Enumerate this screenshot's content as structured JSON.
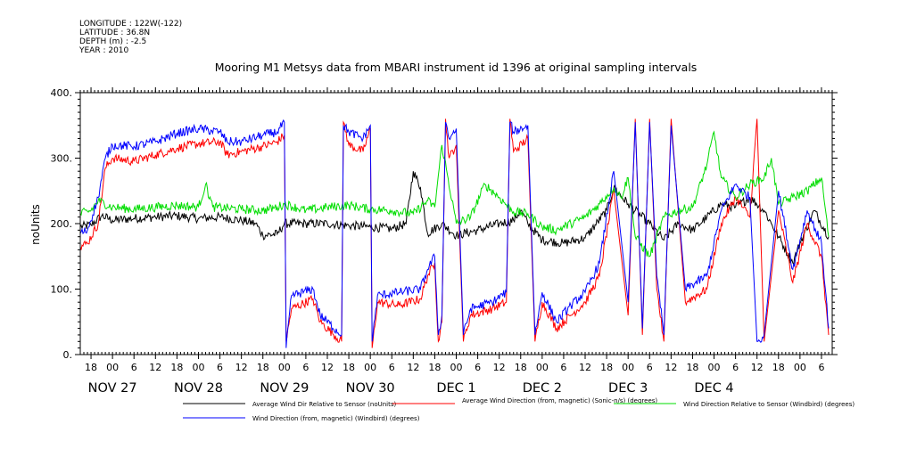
{
  "metadata": {
    "longitude": "LONGITUDE : 122W(-122)",
    "latitude": "LATITUDE : 36.8N",
    "depth": "DEPTH (m) : -2.5",
    "year": "YEAR : 2010"
  },
  "chart_data": {
    "type": "line",
    "title": "Mooring M1 Metsys data from MBARI instrument id 1396 at original sampling intervals",
    "ylabel": "noUnits",
    "xlabel": "",
    "ylim": [
      0,
      400
    ],
    "yticks": [
      "0.",
      "100.",
      "200.",
      "300.",
      "400."
    ],
    "ytick_values": [
      0,
      100,
      200,
      300,
      400
    ],
    "xlim_hours": [
      -9,
      201
    ],
    "hour_ticks": [
      "18",
      "00",
      "06",
      "12",
      "18",
      "00",
      "06",
      "12",
      "18",
      "00",
      "06",
      "12",
      "18",
      "00",
      "06",
      "12",
      "18",
      "00",
      "06",
      "12",
      "18",
      "00",
      "06",
      "12",
      "18",
      "00",
      "06",
      "12"
    ],
    "hour_tick_offsets": [
      -6,
      0,
      6,
      12,
      18,
      24,
      30,
      36,
      42,
      48,
      54,
      60,
      66,
      72,
      78,
      84,
      90,
      96,
      102,
      108,
      114,
      120,
      126,
      132,
      138,
      144,
      150,
      156,
      162,
      168,
      174,
      180,
      186,
      192,
      198
    ],
    "day_labels": [
      "NOV 27",
      "NOV 28",
      "NOV 29",
      "NOV 30",
      "DEC  1",
      "DEC  2",
      "DEC  3",
      "DEC  4"
    ],
    "day_label_hours": [
      0,
      24,
      48,
      72,
      96,
      120,
      144,
      168
    ],
    "grid": false,
    "legend_position": "bottom",
    "series": [
      {
        "name": "Average Wind Dir Relative to Sensor (noUnits)",
        "color": "#000000",
        "points": [
          [
            -9,
            195
          ],
          [
            -6,
            198
          ],
          [
            -3,
            212
          ],
          [
            0,
            205
          ],
          [
            6,
            208
          ],
          [
            12,
            210
          ],
          [
            18,
            212
          ],
          [
            24,
            208
          ],
          [
            30,
            210
          ],
          [
            36,
            205
          ],
          [
            40,
            200
          ],
          [
            42,
            182
          ],
          [
            46,
            184
          ],
          [
            48,
            200
          ],
          [
            54,
            200
          ],
          [
            60,
            200
          ],
          [
            66,
            197
          ],
          [
            72,
            195
          ],
          [
            78,
            192
          ],
          [
            82,
            200
          ],
          [
            84,
            280
          ],
          [
            86,
            255
          ],
          [
            88,
            185
          ],
          [
            92,
            200
          ],
          [
            96,
            182
          ],
          [
            102,
            190
          ],
          [
            108,
            200
          ],
          [
            112,
            205
          ],
          [
            114,
            220
          ],
          [
            116,
            200
          ],
          [
            120,
            175
          ],
          [
            126,
            170
          ],
          [
            132,
            178
          ],
          [
            138,
            220
          ],
          [
            140,
            255
          ],
          [
            144,
            230
          ],
          [
            150,
            200
          ],
          [
            154,
            175
          ],
          [
            158,
            200
          ],
          [
            162,
            190
          ],
          [
            166,
            210
          ],
          [
            170,
            230
          ],
          [
            174,
            225
          ],
          [
            178,
            240
          ],
          [
            182,
            220
          ],
          [
            184,
            200
          ],
          [
            186,
            180
          ],
          [
            190,
            140
          ],
          [
            192,
            170
          ],
          [
            196,
            220
          ],
          [
            200,
            180
          ]
        ]
      },
      {
        "name": "Average Wind Direction (from, magnetic) (Sonic-n/s) (degrees)",
        "color": "#ff0000",
        "points": [
          [
            -9,
            165
          ],
          [
            -7,
            170
          ],
          [
            -4,
            200
          ],
          [
            -2,
            285
          ],
          [
            0,
            300
          ],
          [
            6,
            295
          ],
          [
            12,
            305
          ],
          [
            18,
            315
          ],
          [
            24,
            322
          ],
          [
            30,
            325
          ],
          [
            32,
            305
          ],
          [
            36,
            310
          ],
          [
            42,
            318
          ],
          [
            46,
            325
          ],
          [
            48,
            335
          ],
          [
            48.5,
            20
          ],
          [
            50,
            70
          ],
          [
            56,
            85
          ],
          [
            58,
            50
          ],
          [
            64,
            20
          ],
          [
            64.5,
            355
          ],
          [
            66,
            320
          ],
          [
            70,
            310
          ],
          [
            72,
            345
          ],
          [
            72.5,
            10
          ],
          [
            74,
            80
          ],
          [
            80,
            75
          ],
          [
            86,
            85
          ],
          [
            88,
            120
          ],
          [
            90,
            140
          ],
          [
            91,
            20
          ],
          [
            92,
            50
          ],
          [
            93,
            360
          ],
          [
            94,
            300
          ],
          [
            96,
            320
          ],
          [
            98,
            20
          ],
          [
            100,
            60
          ],
          [
            106,
            70
          ],
          [
            110,
            80
          ],
          [
            111,
            360
          ],
          [
            112,
            310
          ],
          [
            116,
            330
          ],
          [
            118,
            20
          ],
          [
            120,
            80
          ],
          [
            124,
            40
          ],
          [
            128,
            60
          ],
          [
            132,
            80
          ],
          [
            136,
            120
          ],
          [
            140,
            250
          ],
          [
            144,
            60
          ],
          [
            146,
            360
          ],
          [
            148,
            30
          ],
          [
            150,
            360
          ],
          [
            152,
            100
          ],
          [
            154,
            20
          ],
          [
            156,
            360
          ],
          [
            160,
            80
          ],
          [
            166,
            100
          ],
          [
            170,
            200
          ],
          [
            174,
            240
          ],
          [
            178,
            210
          ],
          [
            180,
            360
          ],
          [
            182,
            20
          ],
          [
            186,
            220
          ],
          [
            190,
            110
          ],
          [
            194,
            200
          ],
          [
            198,
            150
          ],
          [
            200,
            30
          ]
        ]
      },
      {
        "name": "Wind Direction Relative to Sensor (Windbird) (degrees)",
        "color": "#00dd00",
        "points": [
          [
            -9,
            215
          ],
          [
            -6,
            220
          ],
          [
            -4,
            235
          ],
          [
            0,
            225
          ],
          [
            6,
            222
          ],
          [
            12,
            225
          ],
          [
            18,
            228
          ],
          [
            24,
            225
          ],
          [
            26,
            260
          ],
          [
            28,
            225
          ],
          [
            36,
            222
          ],
          [
            42,
            220
          ],
          [
            46,
            225
          ],
          [
            48,
            230
          ],
          [
            54,
            220
          ],
          [
            60,
            225
          ],
          [
            66,
            228
          ],
          [
            72,
            222
          ],
          [
            78,
            220
          ],
          [
            84,
            215
          ],
          [
            88,
            235
          ],
          [
            90,
            225
          ],
          [
            92,
            320
          ],
          [
            96,
            200
          ],
          [
            100,
            210
          ],
          [
            104,
            260
          ],
          [
            108,
            240
          ],
          [
            112,
            218
          ],
          [
            116,
            215
          ],
          [
            120,
            195
          ],
          [
            124,
            190
          ],
          [
            128,
            200
          ],
          [
            132,
            210
          ],
          [
            136,
            230
          ],
          [
            140,
            255
          ],
          [
            142,
            240
          ],
          [
            144,
            270
          ],
          [
            146,
            180
          ],
          [
            150,
            150
          ],
          [
            154,
            210
          ],
          [
            158,
            220
          ],
          [
            162,
            225
          ],
          [
            166,
            290
          ],
          [
            168,
            340
          ],
          [
            170,
            270
          ],
          [
            174,
            240
          ],
          [
            178,
            260
          ],
          [
            182,
            270
          ],
          [
            184,
            300
          ],
          [
            186,
            230
          ],
          [
            190,
            240
          ],
          [
            194,
            250
          ],
          [
            198,
            270
          ],
          [
            200,
            180
          ]
        ]
      },
      {
        "name": "Wind Direction (from, magnetic) (Windbird) (degrees)",
        "color": "#0000ff",
        "points": [
          [
            -9,
            185
          ],
          [
            -7,
            190
          ],
          [
            -4,
            240
          ],
          [
            -2,
            300
          ],
          [
            0,
            320
          ],
          [
            6,
            318
          ],
          [
            12,
            325
          ],
          [
            18,
            338
          ],
          [
            24,
            345
          ],
          [
            30,
            340
          ],
          [
            32,
            325
          ],
          [
            36,
            325
          ],
          [
            42,
            335
          ],
          [
            46,
            340
          ],
          [
            48,
            355
          ],
          [
            48.5,
            10
          ],
          [
            50,
            90
          ],
          [
            56,
            100
          ],
          [
            58,
            60
          ],
          [
            64,
            30
          ],
          [
            64.5,
            350
          ],
          [
            66,
            340
          ],
          [
            70,
            330
          ],
          [
            72,
            350
          ],
          [
            72.5,
            20
          ],
          [
            74,
            90
          ],
          [
            80,
            95
          ],
          [
            86,
            100
          ],
          [
            88,
            130
          ],
          [
            90,
            150
          ],
          [
            91,
            30
          ],
          [
            92,
            60
          ],
          [
            93,
            355
          ],
          [
            94,
            330
          ],
          [
            96,
            345
          ],
          [
            98,
            30
          ],
          [
            100,
            70
          ],
          [
            106,
            80
          ],
          [
            110,
            95
          ],
          [
            111,
            355
          ],
          [
            112,
            340
          ],
          [
            116,
            350
          ],
          [
            118,
            30
          ],
          [
            120,
            95
          ],
          [
            124,
            50
          ],
          [
            128,
            75
          ],
          [
            132,
            95
          ],
          [
            136,
            140
          ],
          [
            140,
            280
          ],
          [
            144,
            80
          ],
          [
            146,
            355
          ],
          [
            148,
            40
          ],
          [
            150,
            355
          ],
          [
            152,
            120
          ],
          [
            154,
            30
          ],
          [
            156,
            350
          ],
          [
            160,
            100
          ],
          [
            166,
            120
          ],
          [
            170,
            220
          ],
          [
            174,
            260
          ],
          [
            178,
            240
          ],
          [
            180,
            20
          ],
          [
            182,
            30
          ],
          [
            186,
            250
          ],
          [
            190,
            130
          ],
          [
            194,
            220
          ],
          [
            198,
            170
          ],
          [
            200,
            40
          ]
        ]
      }
    ]
  }
}
